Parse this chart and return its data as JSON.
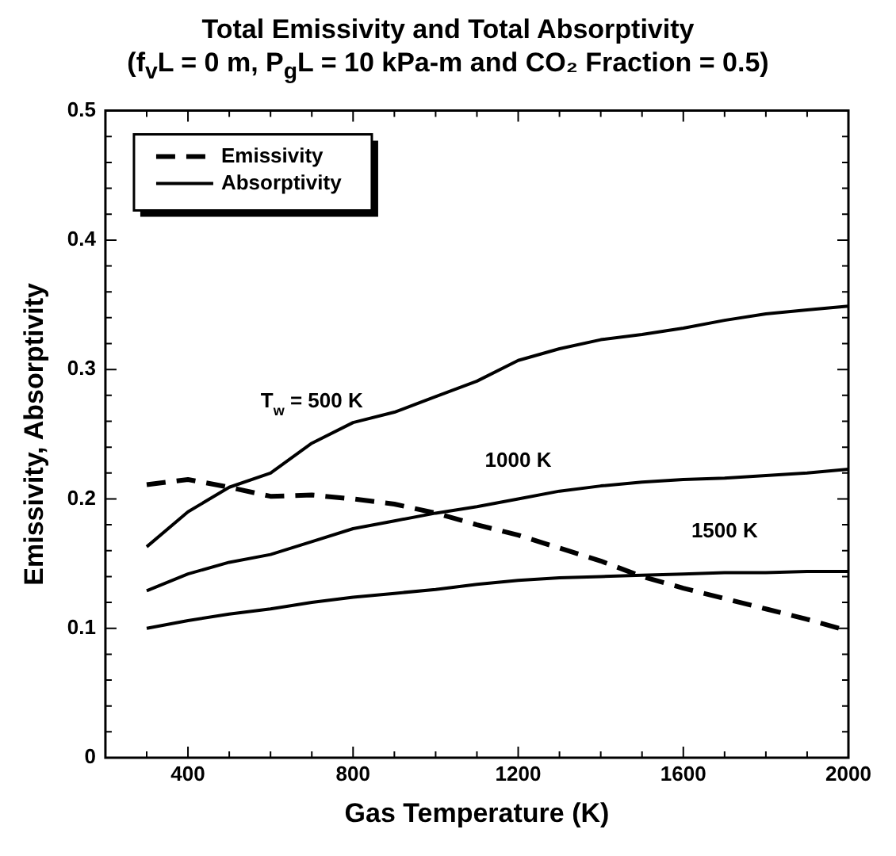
{
  "chart_data": {
    "type": "line",
    "title": "Total Emissivity and Total Absorptivity",
    "subtitle": "(f$_{v}$L = 0 m, P$_{g}$L = 10 kPa-m and CO₂ Fraction = 0.5)",
    "xlabel": "Gas Temperature (K)",
    "ylabel": "Emissivity, Absorptivity",
    "x": [
      300,
      400,
      500,
      600,
      700,
      800,
      900,
      1000,
      1100,
      1200,
      1300,
      1400,
      1500,
      1600,
      1700,
      1800,
      1900,
      2000
    ],
    "series": [
      {
        "name": "Emissivity",
        "color": "#000000",
        "line_style": "dashed",
        "values": [
          0.211,
          0.215,
          0.209,
          0.202,
          0.203,
          0.2,
          0.196,
          0.189,
          0.18,
          0.172,
          0.162,
          0.152,
          0.14,
          0.131,
          0.123,
          0.115,
          0.107,
          0.098
        ]
      },
      {
        "name": "Absorptivity",
        "color": "#000000",
        "line_style": "solid",
        "values": [
          0.163,
          0.19,
          0.209,
          0.22,
          0.243,
          0.259,
          0.267,
          0.279,
          0.291,
          0.307,
          0.316,
          0.323,
          0.327,
          0.332,
          0.338,
          0.343,
          0.346,
          0.349
        ]
      },
      {
        "color": "#000000",
        "line_style": "solid",
        "values": [
          0.129,
          0.142,
          0.151,
          0.157,
          0.167,
          0.177,
          0.183,
          0.189,
          0.194,
          0.2,
          0.206,
          0.21,
          0.213,
          0.215,
          0.216,
          0.218,
          0.22,
          0.223
        ]
      },
      {
        "color": "#000000",
        "line_style": "solid",
        "values": [
          0.1,
          0.106,
          0.111,
          0.115,
          0.12,
          0.124,
          0.127,
          0.13,
          0.134,
          0.137,
          0.139,
          0.14,
          0.141,
          0.142,
          0.143,
          0.143,
          0.144,
          0.144
        ]
      }
    ],
    "annotations": [
      "T$_{w}$ = 500 K",
      "1000 K",
      "1500 K"
    ],
    "xlim": [
      200,
      2000
    ],
    "xticks": [
      {
        "value": 300,
        "label": null
      },
      400,
      {
        "value": 500,
        "label": null
      },
      {
        "value": 600,
        "label": null
      },
      {
        "value": 700,
        "label": null
      },
      800,
      {
        "value": 900,
        "label": null
      },
      {
        "value": 1000,
        "label": null
      },
      {
        "value": 1100,
        "label": null
      },
      1200,
      {
        "value": 1300,
        "label": null
      },
      {
        "value": 1400,
        "label": null
      },
      {
        "value": 1500,
        "label": null
      },
      1600,
      {
        "value": 1700,
        "label": null
      },
      {
        "value": 1800,
        "label": null
      },
      {
        "value": 1900,
        "label": null
      },
      2000
    ],
    "ylim": [
      0,
      0.5
    ],
    "yticks": [
      0,
      {
        "value": 0.02,
        "label": null
      },
      {
        "value": 0.04,
        "label": null
      },
      {
        "value": 0.06,
        "label": null
      },
      {
        "value": 0.08,
        "label": null
      },
      0.1,
      {
        "value": 0.12,
        "label": null
      },
      {
        "value": 0.14,
        "label": null
      },
      {
        "value": 0.16,
        "label": null
      },
      {
        "value": 0.18,
        "label": null
      },
      0.2,
      {
        "value": 0.22,
        "label": null
      },
      {
        "value": 0.24,
        "label": null
      },
      {
        "value": 0.26,
        "label": null
      },
      {
        "value": 0.28,
        "label": null
      },
      0.3,
      {
        "value": 0.32,
        "label": null
      },
      {
        "value": 0.34,
        "label": null
      },
      {
        "value": 0.36,
        "label": null
      },
      {
        "value": 0.38,
        "label": null
      },
      0.4,
      {
        "value": 0.42,
        "label": null
      },
      {
        "value": 0.44,
        "label": null
      },
      {
        "value": 0.46,
        "label": null
      },
      {
        "value": 0.48,
        "label": null
      },
      0.5
    ],
    "grid": false,
    "legend": "top left",
    "marker": "none"
  }
}
